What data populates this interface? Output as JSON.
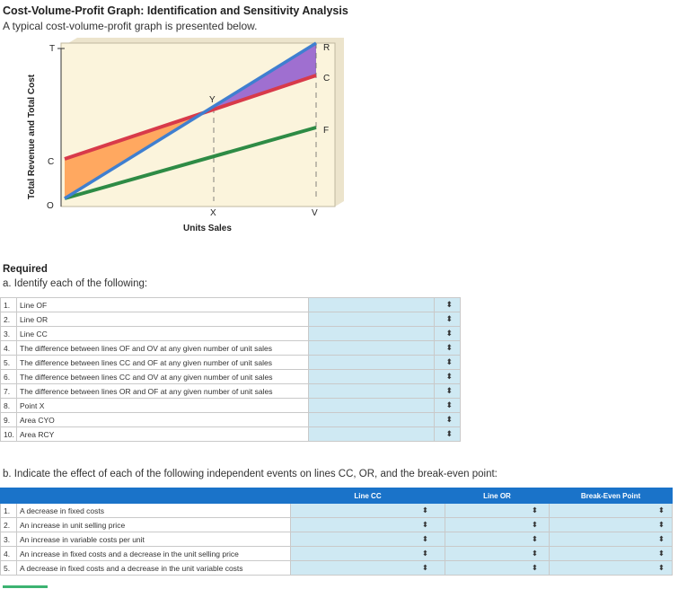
{
  "header": {
    "title": "Cost-Volume-Profit Graph: Identification and Sensitivity Analysis",
    "subtitle": "A typical cost-volume-profit graph is presented below."
  },
  "graph": {
    "y_axis_label": "Total Revenue and Total Cost",
    "x_axis_label": "Units Sales",
    "labels": {
      "T": "T",
      "R": "R",
      "C_right": "C",
      "Y": "Y",
      "F": "F",
      "C_left": "C",
      "O": "O",
      "X": "X",
      "V": "V"
    },
    "colors": {
      "revenue": "#3f7fd0",
      "total_cost": "#d83a4a",
      "variable_cost": "#2e8b45",
      "loss_area": "#ffa860",
      "profit_area": "#9f6fd0",
      "background": "#fbf4dc"
    }
  },
  "required": {
    "heading": "Required",
    "part_a_prompt": "a. Identify each of the following:",
    "part_a_items": [
      {
        "num": "1.",
        "text": "Line OF",
        "arrow": "⬍"
      },
      {
        "num": "2.",
        "text": "Line OR",
        "arrow": "⬍"
      },
      {
        "num": "3.",
        "text": "Line CC",
        "arrow": "⬍"
      },
      {
        "num": "4.",
        "text": "The difference between lines OF and OV at any given number of unit sales",
        "arrow": "⬍"
      },
      {
        "num": "5.",
        "text": "The difference between lines CC and OF at any given number of unit sales",
        "arrow": "⬍"
      },
      {
        "num": "6.",
        "text": "The difference between lines CC and OV at any given number of unit sales",
        "arrow": "⬍"
      },
      {
        "num": "7.",
        "text": "The difference between lines OR and OF at any given number of unit sales",
        "arrow": "⬍"
      },
      {
        "num": "8.",
        "text": "Point X",
        "arrow": "⬍"
      },
      {
        "num": "9.",
        "text": "Area CYO",
        "arrow": "⬍"
      },
      {
        "num": "10.",
        "text": "Area RCY",
        "arrow": "⬍"
      }
    ],
    "part_b_prompt": "b. Indicate the effect of each of the following independent events on lines CC, OR, and the break-even point:",
    "part_b_headers": [
      "",
      "Line CC",
      "Line OR",
      "Break-Even Point"
    ],
    "part_b_items": [
      {
        "num": "1.",
        "text": "A decrease in fixed costs"
      },
      {
        "num": "2.",
        "text": "An increase in unit selling price"
      },
      {
        "num": "3.",
        "text": "An increase in variable costs per unit"
      },
      {
        "num": "4.",
        "text": "An increase in fixed costs and a decrease in the unit selling price"
      },
      {
        "num": "5.",
        "text": "A decrease in fixed costs and a decrease in the unit variable costs"
      }
    ],
    "arrow_glyph": "⬍"
  }
}
